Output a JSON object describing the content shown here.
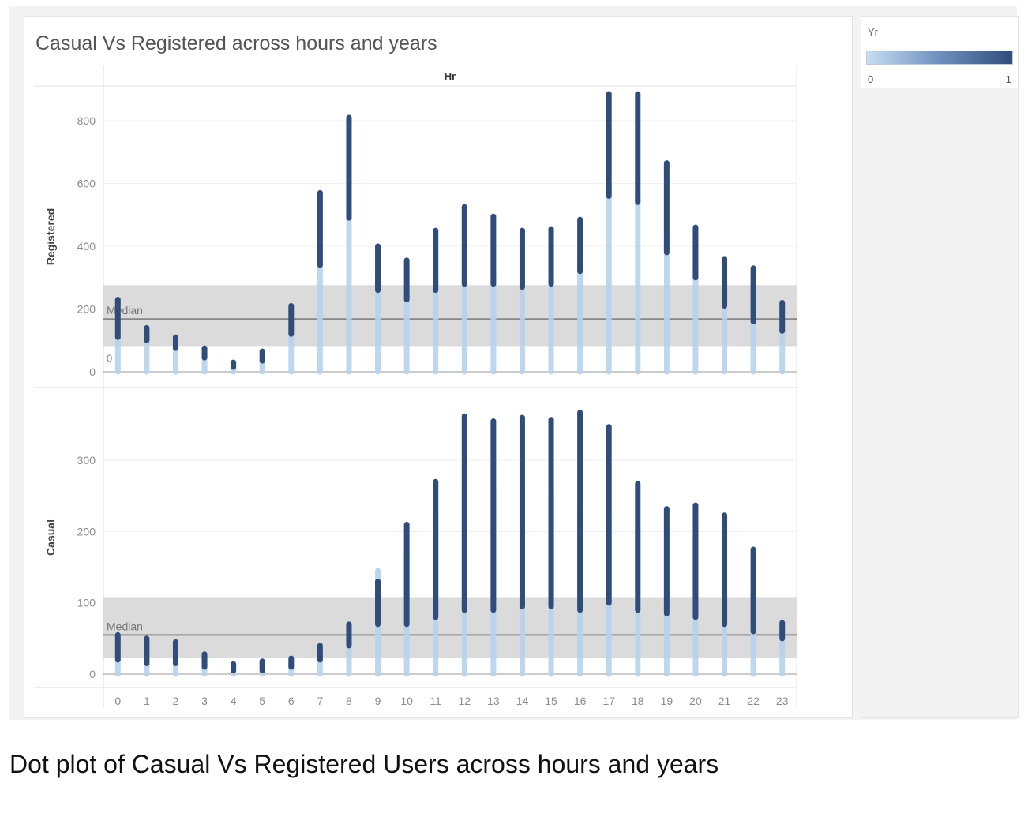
{
  "title": "Casual Vs Registered across hours and years",
  "column_header": "Hr",
  "caption": "Dot plot of Casual Vs Registered Users across hours and years",
  "legend": {
    "title": "Yr",
    "min_label": "0",
    "max_label": "1",
    "color_low": "#c7ddf2",
    "color_high": "#314d7a"
  },
  "colors": {
    "year0": "#b7d3ee",
    "year1": "#2f4c7a",
    "band": "#d9d9d9",
    "median_line": "#888888",
    "gridline": "#f0f0f0",
    "axis_text": "#8c8c8c"
  },
  "reference_label": "Median",
  "zero_label": "0",
  "chart_data": {
    "type": "scatter",
    "title": "Casual Vs Registered across hours and years",
    "xlabel": "Hr",
    "legend_title": "Yr",
    "color_encoding": "Yr (0 = light blue, 1 = dark blue)",
    "x": [
      0,
      1,
      2,
      3,
      4,
      5,
      6,
      7,
      8,
      9,
      10,
      11,
      12,
      13,
      14,
      15,
      16,
      17,
      18,
      19,
      20,
      21,
      22,
      23
    ],
    "panels": [
      {
        "ylabel": "Registered",
        "ylim": [
          0,
          830
        ],
        "yticks": [
          0,
          200,
          400,
          600,
          800
        ],
        "median": 168,
        "band": [
          82,
          276
        ],
        "series": [
          {
            "name": "0",
            "min": [
              0,
              0,
              0,
              0,
              0,
              0,
              0,
              0,
              0,
              0,
              0,
              0,
              0,
              0,
              0,
              0,
              0,
              0,
              0,
              0,
              0,
              0,
              0,
              0
            ],
            "max": [
              160,
              120,
              95,
              65,
              22,
              50,
              140,
              360,
              520,
              310,
              250,
              300,
              320,
              320,
              300,
              300,
              350,
              600,
              560,
              430,
              330,
              270,
              200,
              140
            ]
          },
          {
            "name": "1",
            "min": [
              110,
              100,
              75,
              45,
              15,
              35,
              120,
              340,
              490,
              260,
              230,
              260,
              280,
              280,
              270,
              280,
              320,
              560,
              540,
              380,
              300,
              210,
              160,
              130
            ],
            "max": [
              230,
              140,
              110,
              75,
              30,
              65,
              210,
              570,
              810,
              400,
              355,
              450,
              525,
              495,
              450,
              455,
              485,
              885,
              885,
              665,
              460,
              360,
              330,
              220
            ]
          }
        ]
      },
      {
        "ylabel": "Casual",
        "ylim": [
          0,
          380
        ],
        "yticks": [
          0,
          100,
          200,
          300
        ],
        "median": 55,
        "band": [
          23,
          108
        ],
        "series": [
          {
            "name": "0",
            "min": [
              0,
              0,
              0,
              0,
              0,
              0,
              0,
              0,
              0,
              0,
              0,
              0,
              0,
              0,
              0,
              0,
              0,
              0,
              0,
              0,
              0,
              0,
              0,
              0
            ],
            "max": [
              45,
              40,
              35,
              25,
              15,
              16,
              22,
              30,
              62,
              145,
              170,
              225,
              255,
              260,
              265,
              255,
              230,
              220,
              205,
              200,
              195,
              195,
              115,
              72
            ]
          },
          {
            "name": "1",
            "min": [
              20,
              15,
              15,
              10,
              5,
              5,
              10,
              20,
              40,
              70,
              70,
              80,
              90,
              90,
              95,
              95,
              90,
              100,
              90,
              85,
              80,
              70,
              60,
              50
            ],
            "max": [
              55,
              50,
              45,
              28,
              14,
              18,
              22,
              40,
              70,
              130,
              210,
              270,
              362,
              355,
              360,
              357,
              367,
              347,
              267,
              232,
              237,
              223,
              175,
              72
            ]
          }
        ]
      }
    ]
  }
}
